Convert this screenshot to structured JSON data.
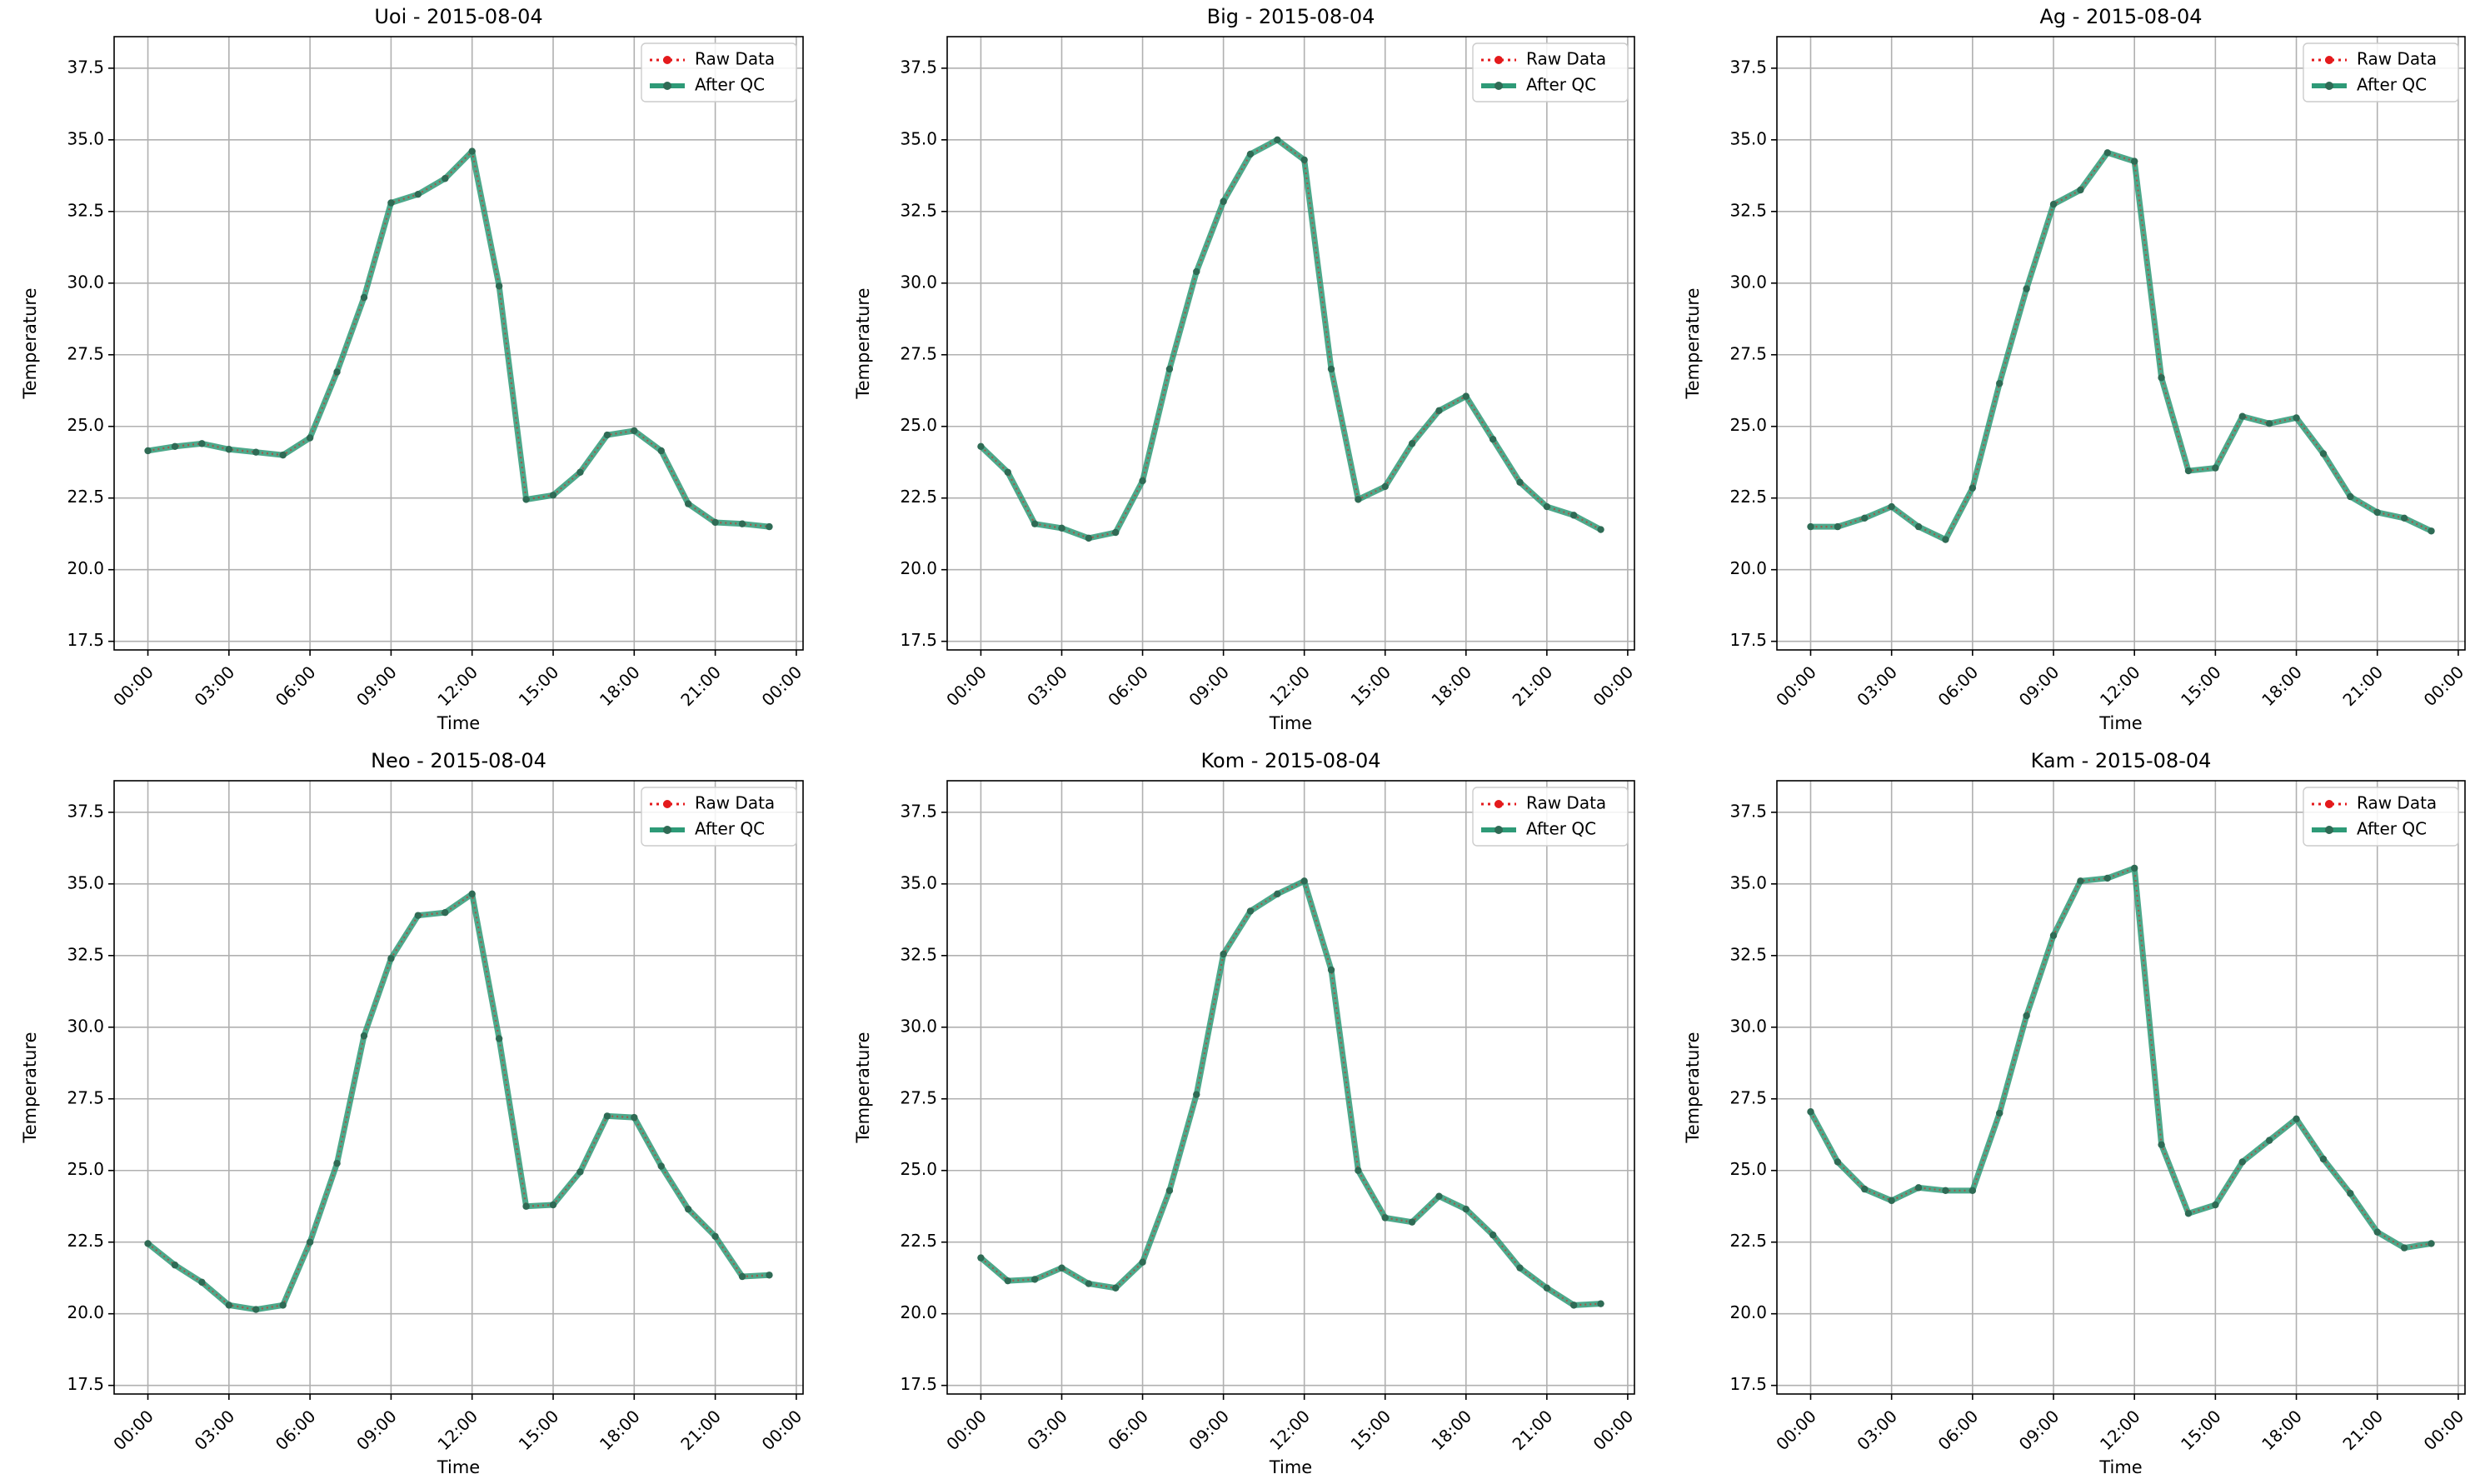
{
  "colors": {
    "raw": "#e41a1c",
    "qc": "#2e9a77",
    "qc_marker": "#2f6b55",
    "grid": "#b0b0b0",
    "axis": "#000000"
  },
  "chart_data": [
    {
      "type": "line",
      "title": "Uoi - 2015-08-04",
      "xlabel": "Time",
      "ylabel": "Temperature",
      "xticks": [
        "00:00",
        "03:00",
        "06:00",
        "09:00",
        "12:00",
        "15:00",
        "18:00",
        "21:00",
        "00:00"
      ],
      "yticks": [
        "17.5",
        "20.0",
        "22.5",
        "25.0",
        "27.5",
        "30.0",
        "32.5",
        "35.0",
        "37.5"
      ],
      "xlim_hours": [
        -1.25,
        24.25
      ],
      "ylim": [
        17.2,
        38.6
      ],
      "grid": true,
      "legend": "top-right",
      "x_hours": [
        0,
        1,
        2,
        3,
        4,
        5,
        6,
        7,
        8,
        9,
        10,
        11,
        12,
        13,
        14,
        15,
        16,
        17,
        18,
        19,
        20,
        21,
        22,
        23
      ],
      "series": [
        {
          "name": "Raw Data",
          "style": "dotted",
          "values": [
            24.15,
            24.3,
            24.4,
            24.2,
            24.1,
            24.0,
            24.6,
            26.9,
            29.5,
            32.8,
            33.1,
            33.65,
            34.6,
            29.9,
            22.45,
            22.6,
            23.4,
            24.7,
            24.85,
            24.15,
            22.3,
            21.65,
            21.6,
            21.5
          ]
        },
        {
          "name": "After QC",
          "style": "solid",
          "values": [
            24.15,
            24.3,
            24.4,
            24.2,
            24.1,
            24.0,
            24.6,
            26.9,
            29.5,
            32.8,
            33.1,
            33.65,
            34.6,
            29.9,
            22.45,
            22.6,
            23.4,
            24.7,
            24.85,
            24.15,
            22.3,
            21.65,
            21.6,
            21.5
          ]
        }
      ]
    },
    {
      "type": "line",
      "title": "Big - 2015-08-04",
      "xlabel": "Time",
      "ylabel": "Temperature",
      "xticks": [
        "00:00",
        "03:00",
        "06:00",
        "09:00",
        "12:00",
        "15:00",
        "18:00",
        "21:00",
        "00:00"
      ],
      "yticks": [
        "17.5",
        "20.0",
        "22.5",
        "25.0",
        "27.5",
        "30.0",
        "32.5",
        "35.0",
        "37.5"
      ],
      "xlim_hours": [
        -1.25,
        24.25
      ],
      "ylim": [
        17.2,
        38.6
      ],
      "grid": true,
      "legend": "top-right",
      "x_hours": [
        0,
        1,
        2,
        3,
        4,
        5,
        6,
        7,
        8,
        9,
        10,
        11,
        12,
        13,
        14,
        15,
        16,
        17,
        18,
        19,
        20,
        21,
        22,
        23
      ],
      "series": [
        {
          "name": "Raw Data",
          "style": "dotted",
          "values": [
            24.3,
            23.4,
            21.6,
            21.45,
            21.1,
            21.3,
            23.1,
            27.0,
            30.4,
            32.85,
            34.5,
            35.0,
            34.3,
            27.0,
            22.45,
            22.9,
            24.4,
            25.55,
            26.05,
            24.55,
            23.05,
            22.2,
            21.9,
            21.4
          ]
        },
        {
          "name": "After QC",
          "style": "solid",
          "values": [
            24.3,
            23.4,
            21.6,
            21.45,
            21.1,
            21.3,
            23.1,
            27.0,
            30.4,
            32.85,
            34.5,
            35.0,
            34.3,
            27.0,
            22.45,
            22.9,
            24.4,
            25.55,
            26.05,
            24.55,
            23.05,
            22.2,
            21.9,
            21.4
          ]
        }
      ]
    },
    {
      "type": "line",
      "title": "Ag - 2015-08-04",
      "xlabel": "Time",
      "ylabel": "Temperature",
      "xticks": [
        "00:00",
        "03:00",
        "06:00",
        "09:00",
        "12:00",
        "15:00",
        "18:00",
        "21:00",
        "00:00"
      ],
      "yticks": [
        "17.5",
        "20.0",
        "22.5",
        "25.0",
        "27.5",
        "30.0",
        "32.5",
        "35.0",
        "37.5"
      ],
      "xlim_hours": [
        -1.25,
        24.25
      ],
      "ylim": [
        17.2,
        38.6
      ],
      "grid": true,
      "legend": "top-right",
      "x_hours": [
        0,
        1,
        2,
        3,
        4,
        5,
        6,
        7,
        8,
        9,
        10,
        11,
        12,
        13,
        14,
        15,
        16,
        17,
        18,
        19,
        20,
        21,
        22,
        23
      ],
      "series": [
        {
          "name": "Raw Data",
          "style": "dotted",
          "values": [
            21.5,
            21.5,
            21.8,
            22.2,
            21.5,
            21.05,
            22.85,
            26.5,
            29.8,
            32.75,
            33.25,
            34.55,
            34.25,
            26.7,
            23.45,
            23.55,
            25.35,
            25.1,
            25.3,
            24.05,
            22.55,
            22.0,
            21.8,
            21.35
          ]
        },
        {
          "name": "After QC",
          "style": "solid",
          "values": [
            21.5,
            21.5,
            21.8,
            22.2,
            21.5,
            21.05,
            22.85,
            26.5,
            29.8,
            32.75,
            33.25,
            34.55,
            34.25,
            26.7,
            23.45,
            23.55,
            25.35,
            25.1,
            25.3,
            24.05,
            22.55,
            22.0,
            21.8,
            21.35
          ]
        }
      ]
    },
    {
      "type": "line",
      "title": "Neo - 2015-08-04",
      "xlabel": "Time",
      "ylabel": "Temperature",
      "xticks": [
        "00:00",
        "03:00",
        "06:00",
        "09:00",
        "12:00",
        "15:00",
        "18:00",
        "21:00",
        "00:00"
      ],
      "yticks": [
        "17.5",
        "20.0",
        "22.5",
        "25.0",
        "27.5",
        "30.0",
        "32.5",
        "35.0",
        "37.5"
      ],
      "xlim_hours": [
        -1.25,
        24.25
      ],
      "ylim": [
        17.2,
        38.6
      ],
      "grid": true,
      "legend": "top-right",
      "x_hours": [
        0,
        1,
        2,
        3,
        4,
        5,
        6,
        7,
        8,
        9,
        10,
        11,
        12,
        13,
        14,
        15,
        16,
        17,
        18,
        19,
        20,
        21,
        22,
        23
      ],
      "series": [
        {
          "name": "Raw Data",
          "style": "dotted",
          "values": [
            22.45,
            21.7,
            21.1,
            20.3,
            20.15,
            20.3,
            22.5,
            25.25,
            29.7,
            32.4,
            33.9,
            34.0,
            34.65,
            29.6,
            23.75,
            23.8,
            24.95,
            26.9,
            26.85,
            25.15,
            23.65,
            22.7,
            21.3,
            21.35
          ]
        },
        {
          "name": "After QC",
          "style": "solid",
          "values": [
            22.45,
            21.7,
            21.1,
            20.3,
            20.15,
            20.3,
            22.5,
            25.25,
            29.7,
            32.4,
            33.9,
            34.0,
            34.65,
            29.6,
            23.75,
            23.8,
            24.95,
            26.9,
            26.85,
            25.15,
            23.65,
            22.7,
            21.3,
            21.35
          ]
        }
      ]
    },
    {
      "type": "line",
      "title": "Kom - 2015-08-04",
      "xlabel": "Time",
      "ylabel": "Temperature",
      "xticks": [
        "00:00",
        "03:00",
        "06:00",
        "09:00",
        "12:00",
        "15:00",
        "18:00",
        "21:00",
        "00:00"
      ],
      "yticks": [
        "17.5",
        "20.0",
        "22.5",
        "25.0",
        "27.5",
        "30.0",
        "32.5",
        "35.0",
        "37.5"
      ],
      "xlim_hours": [
        -1.25,
        24.25
      ],
      "ylim": [
        17.2,
        38.6
      ],
      "grid": true,
      "legend": "top-right",
      "x_hours": [
        0,
        1,
        2,
        3,
        4,
        5,
        6,
        7,
        8,
        9,
        10,
        11,
        12,
        13,
        14,
        15,
        16,
        17,
        18,
        19,
        20,
        21,
        22,
        23
      ],
      "series": [
        {
          "name": "Raw Data",
          "style": "dotted",
          "values": [
            21.95,
            21.15,
            21.2,
            21.6,
            21.05,
            20.9,
            21.8,
            24.3,
            27.65,
            32.55,
            34.05,
            34.65,
            35.1,
            32.0,
            25.0,
            23.35,
            23.2,
            24.1,
            23.65,
            22.75,
            21.6,
            20.9,
            20.3,
            20.35
          ]
        },
        {
          "name": "After QC",
          "style": "solid",
          "values": [
            21.95,
            21.15,
            21.2,
            21.6,
            21.05,
            20.9,
            21.8,
            24.3,
            27.65,
            32.55,
            34.05,
            34.65,
            35.1,
            32.0,
            25.0,
            23.35,
            23.2,
            24.1,
            23.65,
            22.75,
            21.6,
            20.9,
            20.3,
            20.35
          ]
        }
      ]
    },
    {
      "type": "line",
      "title": "Kam - 2015-08-04",
      "xlabel": "Time",
      "ylabel": "Temperature",
      "xticks": [
        "00:00",
        "03:00",
        "06:00",
        "09:00",
        "12:00",
        "15:00",
        "18:00",
        "21:00",
        "00:00"
      ],
      "yticks": [
        "17.5",
        "20.0",
        "22.5",
        "25.0",
        "27.5",
        "30.0",
        "32.5",
        "35.0",
        "37.5"
      ],
      "xlim_hours": [
        -1.25,
        24.25
      ],
      "ylim": [
        17.2,
        38.6
      ],
      "grid": true,
      "legend": "top-right",
      "x_hours": [
        0,
        1,
        2,
        3,
        4,
        5,
        6,
        7,
        8,
        9,
        10,
        11,
        12,
        13,
        14,
        15,
        16,
        17,
        18,
        19,
        20,
        21,
        22,
        23
      ],
      "series": [
        {
          "name": "Raw Data",
          "style": "dotted",
          "values": [
            27.05,
            25.3,
            24.35,
            23.95,
            24.4,
            24.3,
            24.3,
            27.0,
            30.4,
            33.2,
            35.1,
            35.2,
            35.55,
            25.9,
            23.5,
            23.8,
            25.3,
            26.05,
            26.8,
            25.4,
            24.2,
            22.85,
            22.3,
            22.45
          ]
        },
        {
          "name": "After QC",
          "style": "solid",
          "values": [
            27.05,
            25.3,
            24.35,
            23.95,
            24.4,
            24.3,
            24.3,
            27.0,
            30.4,
            33.2,
            35.1,
            35.2,
            35.55,
            25.9,
            23.5,
            23.8,
            25.3,
            26.05,
            26.8,
            25.4,
            24.2,
            22.85,
            22.3,
            22.45
          ]
        }
      ]
    }
  ]
}
